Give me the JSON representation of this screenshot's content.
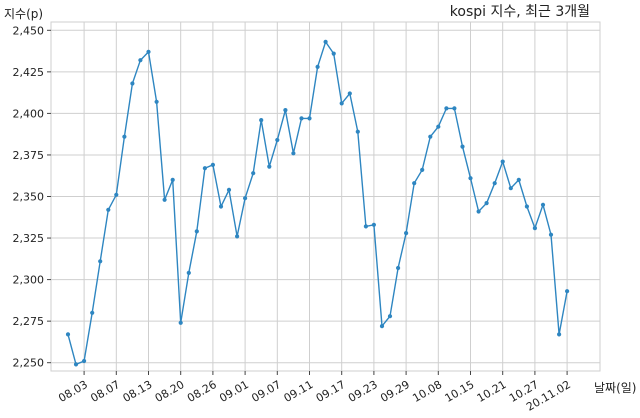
{
  "chart_data": {
    "type": "line",
    "title": "kospi 지수, 최근 3개월",
    "ylabel": "지수(p)",
    "xlabel": "날짜(일)",
    "ylim": [
      2245,
      2455
    ],
    "yticks": [
      2250,
      2275,
      2300,
      2325,
      2350,
      2375,
      2400,
      2425,
      2450
    ],
    "ytick_labels": [
      "2,250",
      "2,275",
      "2,300",
      "2,325",
      "2,350",
      "2,375",
      "2,400",
      "2,425",
      "2,450"
    ],
    "grid": true,
    "color": "#2e86c1",
    "x_tick_labels": [
      "08.03",
      "08.07",
      "08.13",
      "08.20",
      "08.26",
      "09.01",
      "09.07",
      "09.11",
      "09.17",
      "09.23",
      "09.29",
      "10.08",
      "10.15",
      "10.21",
      "10.27",
      "20.11.02"
    ],
    "x_tick_indices": [
      2,
      4,
      6,
      8,
      10,
      12,
      14,
      16,
      18,
      20,
      22,
      24,
      26,
      28,
      30,
      32
    ],
    "values": [
      2267,
      2249,
      2251,
      2280,
      2311,
      2342,
      2351,
      2386,
      2418,
      2432,
      2437,
      2407,
      2348,
      2360,
      2274,
      2304,
      2329,
      2367,
      2369,
      2344,
      2354,
      2326,
      2349,
      2364,
      2396,
      2368,
      2384,
      2402,
      2376,
      2397,
      2397,
      2428,
      2443,
      2436,
      2406,
      2412,
      2389,
      2332,
      2333,
      2272,
      2278,
      2307,
      2328,
      2358,
      2366,
      2386,
      2392,
      2403,
      2403,
      2380,
      2361,
      2341,
      2346,
      2358,
      2371,
      2355,
      2360,
      2344,
      2331,
      2345,
      2327,
      2267,
      2293
    ]
  }
}
